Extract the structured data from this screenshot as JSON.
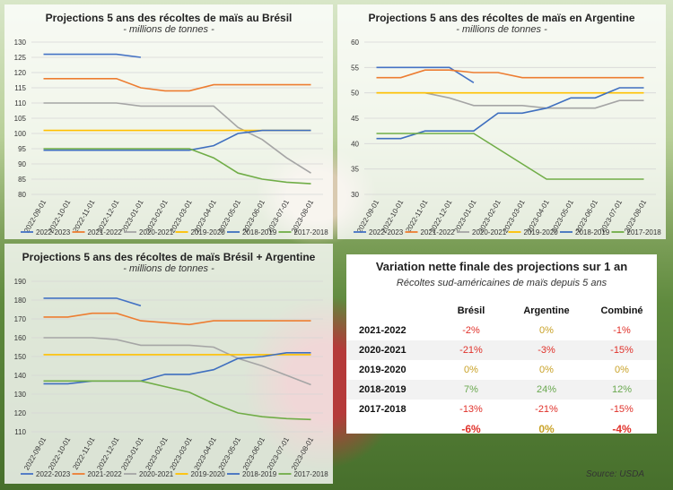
{
  "colors": {
    "2022-2023": "#4472c4",
    "2021-2022": "#ed7d31",
    "2020-2021": "#a5a5a5",
    "2019-2020": "#ffc000",
    "2018-2019": "#3f6fbf",
    "2017-2018": "#70ad47"
  },
  "chart_data": [
    {
      "type": "line",
      "title": "Projections 5 ans des récoltes de maïs au Brésil",
      "subtitle": "- millions de tonnes -",
      "x": [
        "2022-09-01",
        "2022-10-01",
        "2022-11-01",
        "2022-12-01",
        "2023-01-01",
        "2023-02-01",
        "2023-03-01",
        "2023-04-01",
        "2023-05-01",
        "2023-06-01",
        "2023-07-01",
        "2023-08-01"
      ],
      "ylim": [
        80,
        130
      ],
      "yticks": [
        80,
        85,
        90,
        95,
        100,
        105,
        110,
        115,
        120,
        125,
        130
      ],
      "grid": true,
      "legend": "bottom",
      "series": [
        {
          "name": "2022-2023",
          "values": [
            126,
            126,
            126,
            126,
            125,
            null,
            null,
            null,
            null,
            null,
            null,
            null
          ]
        },
        {
          "name": "2021-2022",
          "values": [
            118,
            118,
            118,
            118,
            115,
            114,
            114,
            116,
            116,
            116,
            116,
            116
          ]
        },
        {
          "name": "2020-2021",
          "values": [
            110,
            110,
            110,
            110,
            109,
            109,
            109,
            109,
            102,
            98,
            92,
            87
          ]
        },
        {
          "name": "2019-2020",
          "values": [
            101,
            101,
            101,
            101,
            101,
            101,
            101,
            101,
            101,
            101,
            101,
            101
          ]
        },
        {
          "name": "2018-2019",
          "values": [
            94.5,
            94.5,
            94.5,
            94.5,
            94.5,
            94.5,
            94.5,
            96,
            100,
            101,
            101,
            101
          ]
        },
        {
          "name": "2017-2018",
          "values": [
            95,
            95,
            95,
            95,
            95,
            95,
            95,
            92,
            87,
            85,
            84,
            83.5
          ]
        }
      ]
    },
    {
      "type": "line",
      "title": "Projections 5 ans des récoltes de maïs en Argentine",
      "subtitle": "- millions de tonnes -",
      "x": [
        "2022-09-01",
        "2022-10-01",
        "2022-11-01",
        "2022-12-01",
        "2023-01-01",
        "2023-02-01",
        "2023-03-01",
        "2023-04-01",
        "2023-05-01",
        "2023-06-01",
        "2023-07-01",
        "2023-08-01"
      ],
      "ylim": [
        30,
        60
      ],
      "yticks": [
        30,
        35,
        40,
        45,
        50,
        55,
        60
      ],
      "grid": true,
      "legend": "bottom",
      "series": [
        {
          "name": "2022-2023",
          "values": [
            55,
            55,
            55,
            55,
            52,
            null,
            null,
            null,
            null,
            null,
            null,
            null
          ]
        },
        {
          "name": "2021-2022",
          "values": [
            53,
            53,
            54.5,
            54.5,
            54,
            54,
            53,
            53,
            53,
            53,
            53,
            53
          ]
        },
        {
          "name": "2020-2021",
          "values": [
            50,
            50,
            50,
            49,
            47.5,
            47.5,
            47.5,
            47,
            47,
            47,
            48.5,
            48.5
          ]
        },
        {
          "name": "2019-2020",
          "values": [
            50,
            50,
            50,
            50,
            50,
            50,
            50,
            50,
            50,
            50,
            50,
            50
          ]
        },
        {
          "name": "2018-2019",
          "values": [
            41,
            41,
            42.5,
            42.5,
            42.5,
            46,
            46,
            47,
            49,
            49,
            51,
            51
          ]
        },
        {
          "name": "2017-2018",
          "values": [
            42,
            42,
            42,
            42,
            42,
            39,
            36,
            33,
            33,
            33,
            33,
            33
          ]
        }
      ]
    },
    {
      "type": "line",
      "title": "Projections 5 ans des récoltes de maïs Brésil + Argentine",
      "subtitle": "- millions de tonnes -",
      "x": [
        "2022-09-01",
        "2022-10-01",
        "2022-11-01",
        "2022-12-01",
        "2023-01-01",
        "2023-02-01",
        "2023-03-01",
        "2023-04-01",
        "2023-05-01",
        "2023-06-01",
        "2023-07-01",
        "2023-08-01"
      ],
      "ylim": [
        110,
        190
      ],
      "yticks": [
        110,
        120,
        130,
        140,
        150,
        160,
        170,
        180,
        190
      ],
      "grid": true,
      "legend": "bottom",
      "series": [
        {
          "name": "2022-2023",
          "values": [
            181,
            181,
            181,
            181,
            177,
            null,
            null,
            null,
            null,
            null,
            null,
            null
          ]
        },
        {
          "name": "2021-2022",
          "values": [
            171,
            171,
            173,
            173,
            169,
            168,
            167,
            169,
            169,
            169,
            169,
            169
          ]
        },
        {
          "name": "2020-2021",
          "values": [
            160,
            160,
            160,
            159,
            156,
            156,
            156,
            155,
            149,
            145,
            140,
            135
          ]
        },
        {
          "name": "2019-2020",
          "values": [
            151,
            151,
            151,
            151,
            151,
            151,
            151,
            151,
            151,
            151,
            151,
            151
          ]
        },
        {
          "name": "2018-2019",
          "values": [
            135.5,
            135.5,
            137,
            137,
            137,
            140.5,
            140.5,
            143,
            149,
            150,
            152,
            152
          ]
        },
        {
          "name": "2017-2018",
          "values": [
            137,
            137,
            137,
            137,
            137,
            134,
            131,
            125,
            120,
            118,
            117,
            116.5
          ]
        }
      ]
    },
    {
      "type": "table",
      "title": "Variation nette finale des projections sur 1 an",
      "subtitle": "Récoltes sud-américaines de maïs depuis 5 ans",
      "columns": [
        "Brésil",
        "Argentine",
        "Combiné"
      ],
      "rows": [
        {
          "label": "2021-2022",
          "values": [
            "-2%",
            "0%",
            "-1%"
          ],
          "cls": [
            "neg",
            "zero",
            "neg"
          ]
        },
        {
          "label": "2020-2021",
          "values": [
            "-21%",
            "-3%",
            "-15%"
          ],
          "cls": [
            "neg",
            "neg",
            "neg"
          ]
        },
        {
          "label": "2019-2020",
          "values": [
            "0%",
            "0%",
            "0%"
          ],
          "cls": [
            "zero",
            "zero",
            "zero"
          ]
        },
        {
          "label": "2018-2019",
          "values": [
            "7%",
            "24%",
            "12%"
          ],
          "cls": [
            "pos",
            "pos",
            "pos"
          ]
        },
        {
          "label": "2017-2018",
          "values": [
            "-13%",
            "-21%",
            "-15%"
          ],
          "cls": [
            "neg",
            "neg",
            "neg"
          ]
        }
      ],
      "total": {
        "values": [
          "-6%",
          "0%",
          "-4%"
        ],
        "cls": [
          "neg",
          "zero",
          "neg"
        ]
      }
    }
  ],
  "source": "Source: USDA"
}
